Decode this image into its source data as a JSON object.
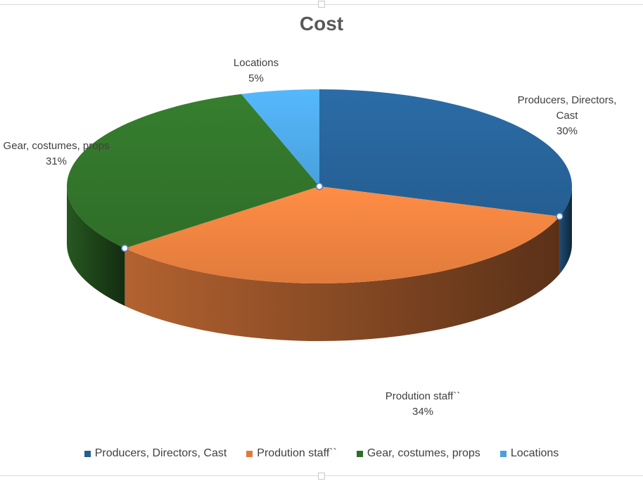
{
  "chart_data": {
    "type": "pie",
    "title": "Cost",
    "categories": [
      "Producers, Directors, Cast",
      "Prodution staff``",
      "Gear, costumes, props",
      "Locations"
    ],
    "values": [
      30,
      34,
      31,
      5
    ],
    "labels": [
      {
        "lines": [
          "Producers, Directors,",
          "Cast"
        ],
        "pct": "30%"
      },
      {
        "lines": [
          "Prodution staff``"
        ],
        "pct": "34%"
      },
      {
        "lines": [
          "Gear, costumes, props"
        ],
        "pct": "31%"
      },
      {
        "lines": [
          "Locations"
        ],
        "pct": "5%"
      }
    ],
    "colors": [
      "#255e91",
      "#e07b3c",
      "#2f6e28",
      "#4aa0dc"
    ],
    "legend_position": "bottom"
  }
}
